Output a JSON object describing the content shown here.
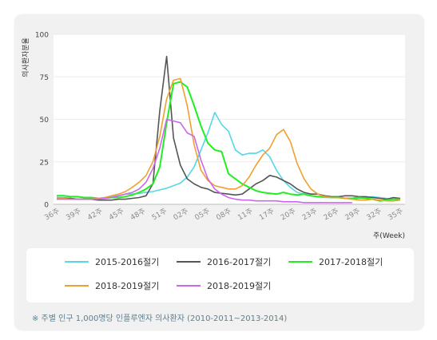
{
  "chart_data": {
    "type": "line",
    "ylabel": "의사환자분율",
    "xlabel": "주(Week)",
    "ylim": [
      0,
      100
    ],
    "yticks": [
      "0",
      "25",
      "50",
      "75",
      "100"
    ],
    "xtick_labels": [
      "36주",
      "39주",
      "42주",
      "45주",
      "48주",
      "51주",
      "02주",
      "05주",
      "08주",
      "11주",
      "17주",
      "20주",
      "23주",
      "26주",
      "29주",
      "32주",
      "35주"
    ],
    "series": [
      {
        "name": "2015-2016절기",
        "color": "#55d7e6",
        "values": [
          4,
          4,
          3.5,
          3,
          3,
          3,
          3.5,
          4,
          4.5,
          5,
          6,
          6,
          6.5,
          7,
          7.5,
          8.5,
          9.5,
          11,
          12.5,
          16,
          22,
          32,
          42,
          54,
          47,
          43,
          32,
          29,
          30,
          30,
          32,
          28,
          20,
          14,
          10,
          7,
          6,
          5,
          4.5,
          4,
          4,
          4,
          3.5,
          3,
          3.5,
          4,
          4.5,
          4,
          3.5,
          3,
          3
        ]
      },
      {
        "name": "2016-2017절기",
        "color": "#555555",
        "values": [
          3.5,
          3.5,
          3.5,
          3,
          3,
          3,
          2.5,
          2.5,
          2.5,
          3,
          3,
          3.5,
          4,
          5,
          12,
          55,
          87,
          39,
          23,
          15,
          12,
          10,
          9,
          7,
          6.5,
          6,
          5.5,
          6,
          9,
          12,
          14,
          17,
          16,
          14,
          12,
          9,
          7,
          6,
          6,
          5,
          4.5,
          4.5,
          5,
          5,
          4.5,
          4.5,
          4,
          3.5,
          3,
          4,
          3.5
        ]
      },
      {
        "name": "2017-2018절기",
        "color": "#22ee22",
        "values": [
          5,
          5,
          4.5,
          4.5,
          4,
          4,
          3.5,
          3.5,
          4,
          4,
          4.5,
          5.5,
          7,
          9,
          12,
          22,
          48,
          71,
          72,
          69,
          58,
          46,
          36,
          32,
          31,
          18,
          15,
          12,
          10,
          8,
          7,
          6.5,
          6,
          7,
          6,
          5.5,
          6,
          5,
          4.5,
          4.5,
          4,
          4,
          3.5,
          3.5,
          4,
          3.5,
          3,
          2,
          2.5,
          3,
          3
        ]
      },
      {
        "name": "2018-2019절기",
        "color": "#f0a030",
        "values": [
          3.5,
          3.5,
          3,
          3,
          3,
          3,
          3.5,
          4,
          5,
          6,
          7.5,
          10,
          13,
          17,
          25,
          40,
          62,
          73,
          74,
          58,
          35,
          20,
          14,
          11,
          10,
          9,
          9,
          11,
          16,
          23,
          29,
          33,
          41,
          44,
          37,
          24,
          15,
          9,
          6,
          4.5,
          4,
          4,
          3.5,
          3,
          2.5,
          2.5,
          3,
          2.5,
          2,
          2,
          2.5
        ]
      },
      {
        "name": "2018-2019절기",
        "color": "#cc66ee",
        "values": [
          3,
          3,
          3,
          3,
          3,
          3,
          3,
          3.5,
          4,
          5,
          6,
          7,
          9,
          13,
          21,
          33,
          50,
          49,
          48,
          42,
          40,
          26,
          15,
          9,
          6,
          4,
          3,
          2.5,
          2.5,
          2,
          2,
          2,
          2,
          1.5,
          1.5,
          1.5,
          1,
          1,
          1,
          1,
          1,
          1,
          1,
          1
        ]
      }
    ]
  },
  "note": "※ 주별 인구 1,000명당 인플루엔자 의사환자 (2010-2011~2013-2014)"
}
